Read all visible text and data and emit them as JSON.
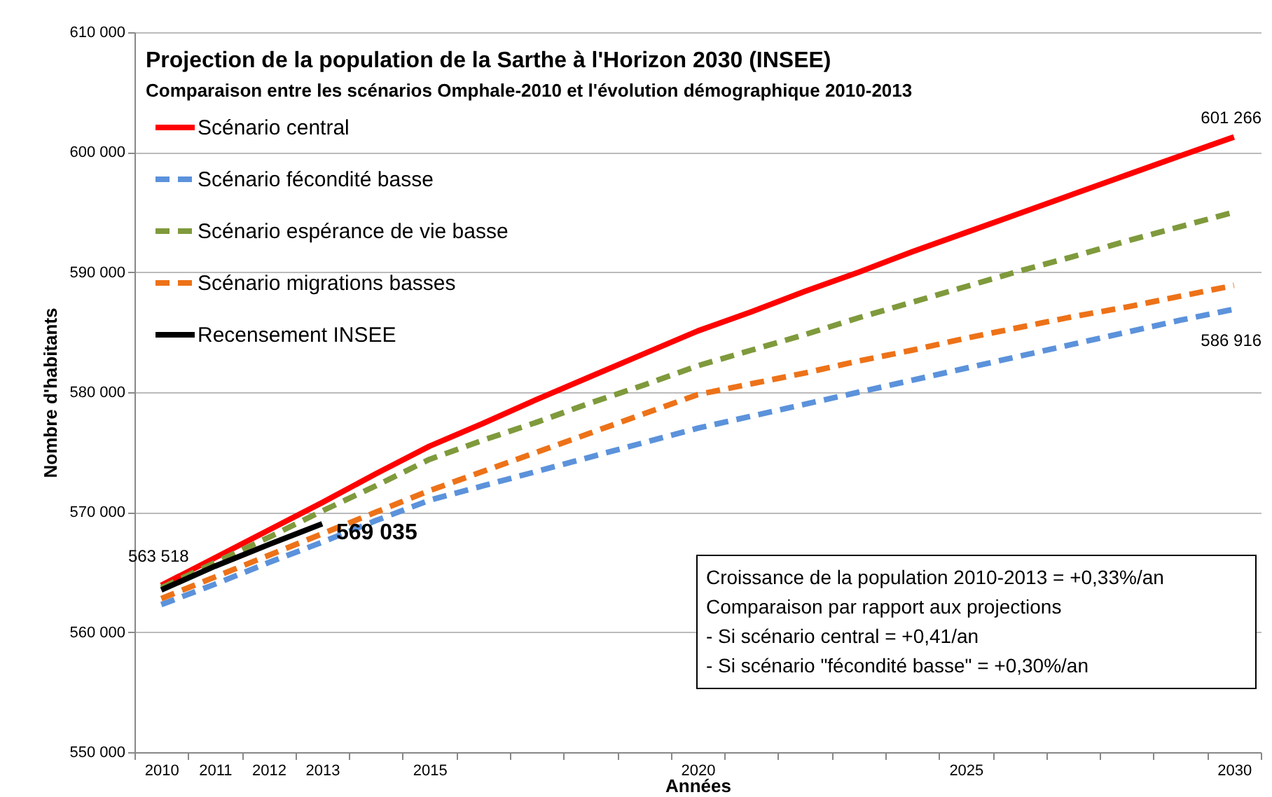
{
  "chart_data": {
    "type": "line",
    "title": "Projection de la population de la Sarthe à l'Horizon 2030 (INSEE)",
    "subtitle": "Comparaison entre les scénarios Omphale-2010 et l'évolution démographique 2010-2013",
    "xlabel": "Années",
    "ylabel": "Nombre d'habitants",
    "categories": [
      "2010",
      "2011",
      "2012",
      "2013",
      null,
      "2015",
      null,
      null,
      null,
      null,
      "2020",
      null,
      null,
      null,
      null,
      "2025",
      null,
      null,
      null,
      null,
      "2030"
    ],
    "series": [
      {
        "name": "Scénario central",
        "color": "#ff0000",
        "line_style": "solid",
        "values": [
          563900,
          566200,
          568500,
          570800,
          573200,
          575500,
          577400,
          579400,
          581300,
          583200,
          585100,
          586700,
          588400,
          590000,
          591700,
          593300,
          594900,
          596500,
          598100,
          599700,
          601266
        ],
        "value_labels": [
          null,
          null,
          null,
          null,
          null,
          null,
          null,
          null,
          null,
          null,
          null,
          null,
          null,
          null,
          null,
          null,
          null,
          null,
          null,
          null,
          "601 266"
        ]
      },
      {
        "name": "Scénario fécondité basse",
        "color": "#5b92db",
        "line_style": "dashed",
        "values": [
          562300,
          564000,
          565800,
          567500,
          569300,
          571000,
          572200,
          573400,
          574600,
          575800,
          577000,
          578000,
          579000,
          580000,
          581000,
          582000,
          583000,
          584000,
          585000,
          586000,
          586916
        ],
        "value_labels": [
          null,
          null,
          null,
          null,
          null,
          null,
          null,
          null,
          null,
          null,
          null,
          null,
          null,
          null,
          null,
          null,
          null,
          null,
          null,
          null,
          "586 916"
        ]
      },
      {
        "name": "Scénario espérance de vie basse",
        "color": "#7f9a3c",
        "line_style": "dashed",
        "values": [
          563700,
          565800,
          567900,
          570100,
          572200,
          574400,
          576000,
          577500,
          579100,
          580600,
          582200,
          583500,
          584800,
          586200,
          587500,
          588800,
          590100,
          591300,
          592600,
          593800,
          595000
        ]
      },
      {
        "name": "Scénario migrations basses",
        "color": "#ed7218",
        "line_style": "dashed",
        "values": [
          562800,
          564600,
          566400,
          568200,
          570000,
          571800,
          573400,
          575000,
          576600,
          578200,
          579800,
          580700,
          581600,
          582600,
          583500,
          584500,
          585400,
          586300,
          587100,
          588000,
          588900
        ]
      },
      {
        "name": "Recensement INSEE",
        "color": "#000000",
        "line_style": "solid",
        "values": [
          563518,
          565500,
          567300,
          569035,
          null,
          null,
          null,
          null,
          null,
          null,
          null,
          null,
          null,
          null,
          null,
          null,
          null,
          null,
          null,
          null,
          null
        ],
        "value_labels": [
          "563 518",
          null,
          null,
          "569 035",
          null,
          null,
          null,
          null,
          null,
          null,
          null,
          null,
          null,
          null,
          null,
          null,
          null,
          null,
          null,
          null,
          null
        ]
      }
    ],
    "ylim": [
      550000,
      610000
    ],
    "yticks": [
      {
        "value": 550000,
        "label": "550 000"
      },
      {
        "value": 560000,
        "label": "560 000"
      },
      {
        "value": 570000,
        "label": "570 000"
      },
      {
        "value": 580000,
        "label": "580 000"
      },
      {
        "value": 590000,
        "label": "590 000"
      },
      {
        "value": 600000,
        "label": "600 000"
      },
      {
        "value": 610000,
        "label": "610 000"
      }
    ],
    "grid": "y",
    "legend": "top left",
    "marker": "none",
    "annotations": [
      "Croissance de la population 2010-2013 = +0,33%/an",
      "Comparaison par rapport aux projections",
      "- Si scénario central = +0,41/an",
      "- Si scénario \"fécondité basse\" = +0,30%/an"
    ]
  }
}
